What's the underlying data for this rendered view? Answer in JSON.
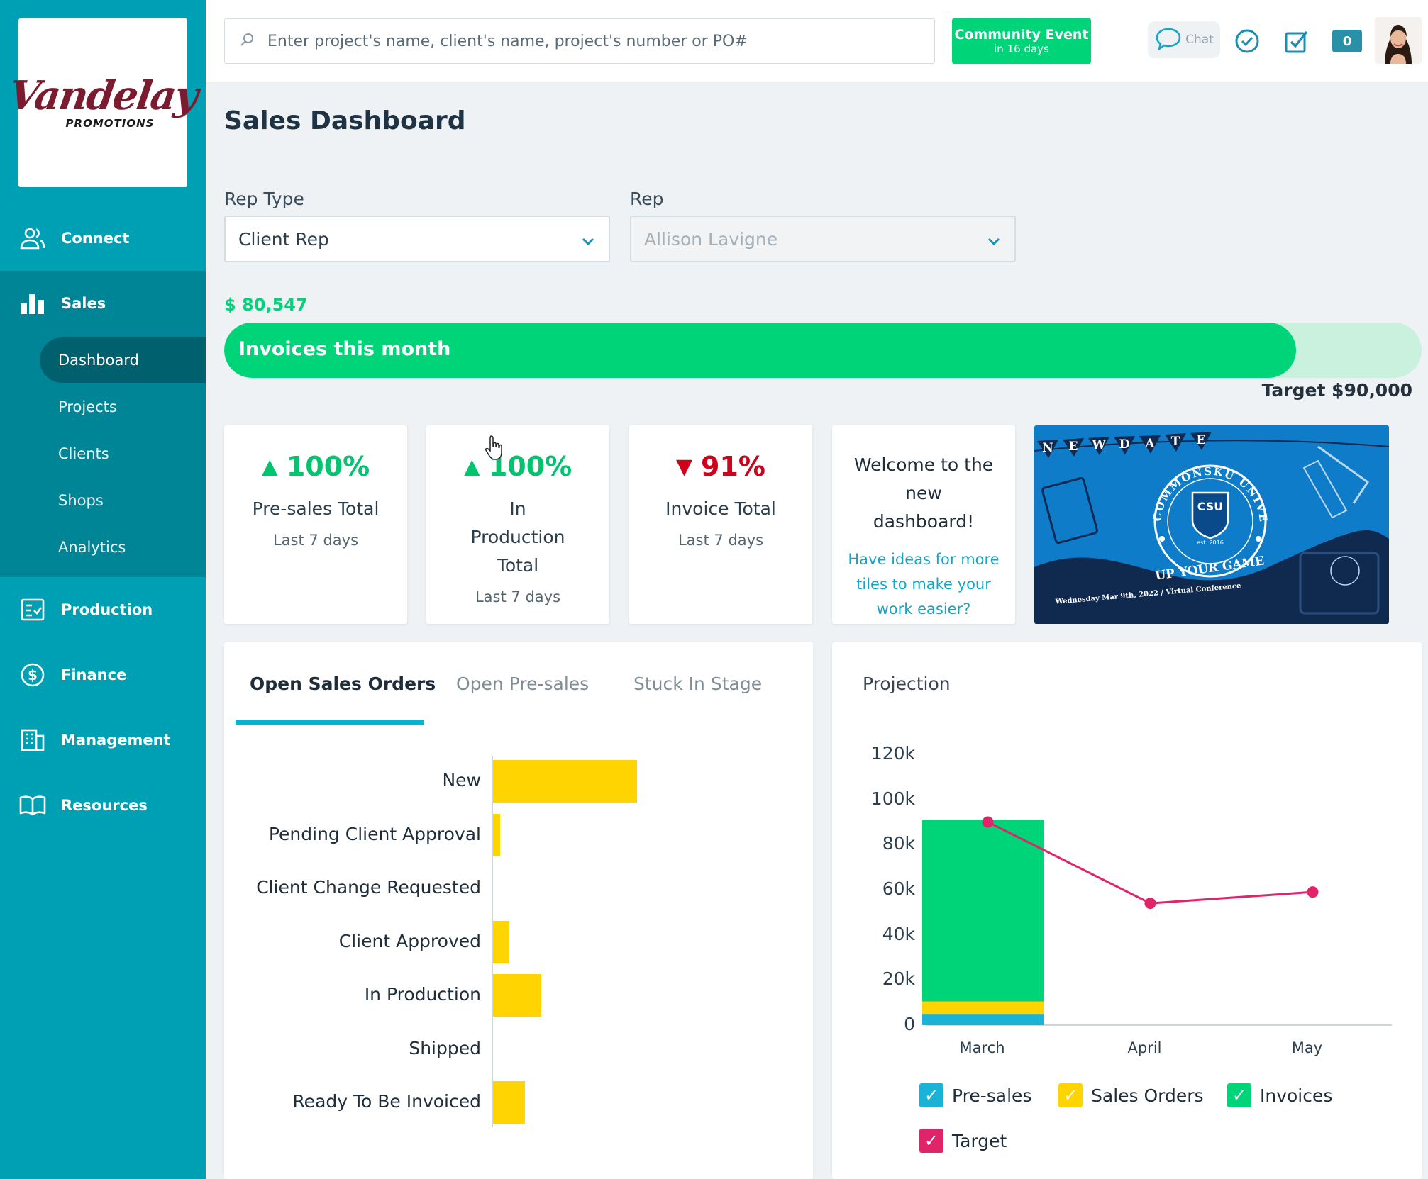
{
  "app": {
    "logo_main": "Vandelay",
    "logo_sub": "PROMOTIONS"
  },
  "sidebar": {
    "items": [
      {
        "label": "Connect",
        "icon": "users-icon"
      },
      {
        "label": "Sales",
        "icon": "bar-chart-icon"
      },
      {
        "label": "Production",
        "icon": "checklist-icon"
      },
      {
        "label": "Finance",
        "icon": "dollar-circle-icon"
      },
      {
        "label": "Management",
        "icon": "building-icon"
      },
      {
        "label": "Resources",
        "icon": "book-icon"
      }
    ],
    "sales_sub": [
      "Dashboard",
      "Projects",
      "Clients",
      "Shops",
      "Analytics"
    ],
    "active_sub": "Dashboard"
  },
  "header": {
    "search_placeholder": "Enter project's name, client's name, project's number or PO#",
    "event_title": "Community Event",
    "event_sub": "in 16 days",
    "chat_label": "Chat",
    "notification_count": "0"
  },
  "main": {
    "title": "Sales Dashboard",
    "rep_type_label": "Rep Type",
    "rep_type_value": "Client Rep",
    "rep_label": "Rep",
    "rep_value": "Allison Lavigne",
    "invoice_amount": "$ 80,547",
    "invoice_bar_label": "Invoices this month",
    "invoice_progress": 0.895,
    "target_label": "Target $90,000"
  },
  "tiles": [
    {
      "trend": "up",
      "pct": "100%",
      "name": "Pre-sales Total",
      "period": "Last 7 days"
    },
    {
      "trend": "up",
      "pct": "100%",
      "name": "In Production Total",
      "period": "Last 7 days"
    },
    {
      "trend": "down",
      "pct": "91%",
      "name": "Invoice Total",
      "period": "Last 7 days"
    }
  ],
  "welcome": {
    "title": "Welcome to the new dashboard!",
    "link": "Have ideas for more tiles to make your work easier?"
  },
  "banner": {
    "letters": [
      "N",
      "E",
      "W",
      "D",
      "A",
      "T",
      "E"
    ],
    "ring_text": "COMMONSKU UNIVERSITY",
    "crest": "CSU",
    "est": "est. 2016",
    "slogan": "UP YOUR GAME",
    "date_line": "Wednesday Mar 9th, 2022 / Virtual Conference"
  },
  "orders": {
    "tabs": [
      "Open Sales Orders",
      "Open Pre-sales",
      "Stuck In Stage"
    ],
    "active_tab": 0,
    "chart_data": {
      "type": "bar",
      "orientation": "horizontal",
      "categories": [
        "New",
        "Pending Client Approval",
        "Client Change Requested",
        "Client Approved",
        "In Production",
        "Shipped",
        "Ready To Be Invoiced"
      ],
      "values": [
        18,
        0.7,
        0,
        2,
        6,
        0,
        4
      ],
      "color": "#ffd400"
    }
  },
  "projection": {
    "title": "Projection",
    "chart_data": {
      "type": "bar",
      "categories": [
        "March",
        "April",
        "May"
      ],
      "yticks": [
        "120k",
        "100k",
        "80k",
        "60k",
        "40k",
        "20k",
        "0"
      ],
      "ylim": [
        0,
        120000
      ],
      "series": [
        {
          "name": "Pre-sales",
          "values": [
            5000,
            0,
            0
          ],
          "color": "#1ab3d6"
        },
        {
          "name": "Sales Orders",
          "values": [
            5500,
            0,
            0
          ],
          "color": "#ffd400"
        },
        {
          "name": "Invoices",
          "values": [
            80500,
            0,
            0
          ],
          "color": "#00d478"
        },
        {
          "name": "Target",
          "type": "line",
          "values": [
            90000,
            54000,
            59000
          ],
          "color": "#e0246a"
        }
      ]
    }
  }
}
